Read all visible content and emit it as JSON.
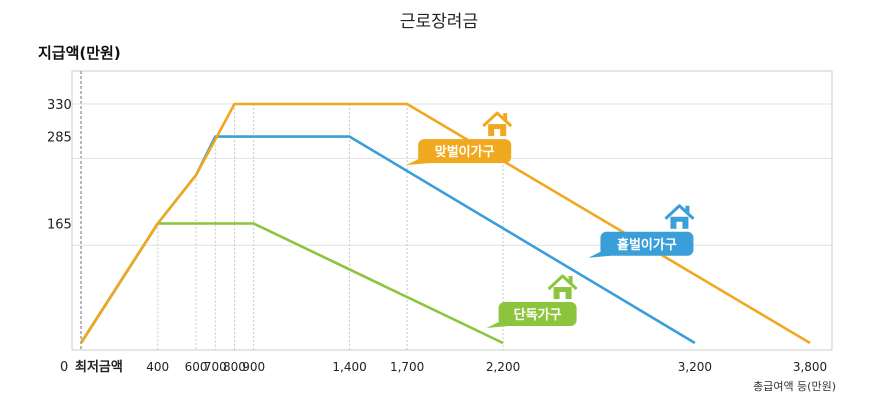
{
  "chart_data": {
    "type": "line",
    "title": "근로장려금",
    "ylabel": "지급액(만원)",
    "xlabel": "총급여액 등(만원)",
    "x_origin_label": "0",
    "x_min_label": "최저금액",
    "xlim": [
      0,
      3950
    ],
    "ylim": [
      0,
      395
    ],
    "x_ticks": [
      400,
      600,
      700,
      800,
      900,
      1400,
      1700,
      2200,
      3200,
      3800
    ],
    "x_tick_labels": [
      "400",
      "600",
      "700",
      "800",
      "900",
      "1,400",
      "1,700",
      "2,200",
      "3,200",
      "3,800"
    ],
    "y_ticks": [
      165,
      285,
      330
    ],
    "y_tick_labels": [
      "165",
      "285",
      "330"
    ],
    "gridlines_y": [
      135,
      255,
      330
    ],
    "series": [
      {
        "name": "맞벌이가구",
        "color": "#f0a81e",
        "x": [
          0,
          400,
          600,
          800,
          1700,
          3800
        ],
        "y": [
          0,
          165,
          232,
          330,
          330,
          0
        ],
        "label_at": [
          2000,
          265
        ]
      },
      {
        "name": "홑벌이가구",
        "color": "#3a9fd8",
        "x": [
          0,
          400,
          600,
          700,
          1400,
          3200
        ],
        "y": [
          0,
          165,
          232,
          285,
          285,
          0
        ],
        "label_at": [
          2950,
          137
        ]
      },
      {
        "name": "단독가구",
        "color": "#8cc43e",
        "x": [
          0,
          400,
          900,
          2200
        ],
        "y": [
          0,
          165,
          165,
          0
        ],
        "label_at": [
          2380,
          40
        ]
      }
    ],
    "icon": "house-icon",
    "grid": true,
    "legend": "inline-labels"
  }
}
